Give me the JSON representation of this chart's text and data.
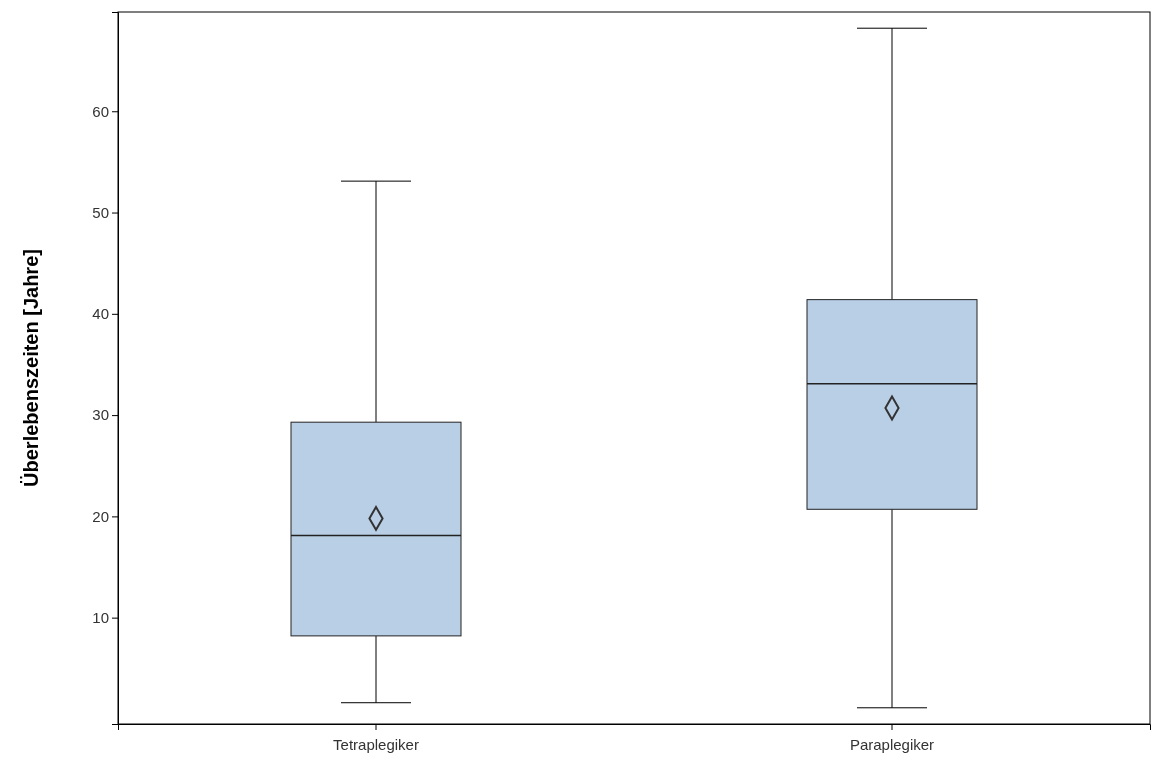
{
  "chart_data": {
    "type": "box",
    "ylabel": "Überlebenszeiten [Jahre]",
    "categories": [
      "Tetraplegiker",
      "Paraplegiker"
    ],
    "boxes": [
      {
        "low": 1.6,
        "q1": 8.2,
        "median": 18.1,
        "q3": 29.3,
        "high": 53.1,
        "mean": 19.8
      },
      {
        "low": 1.1,
        "q1": 20.7,
        "median": 33.1,
        "q3": 41.4,
        "high": 68.2,
        "mean": 30.7
      }
    ],
    "color": "#b9cfe6",
    "ylim": [
      -0.5,
      69.8
    ],
    "yticks": [
      10,
      20,
      30,
      40,
      50,
      60
    ],
    "grid": false,
    "marker": "diamond"
  }
}
